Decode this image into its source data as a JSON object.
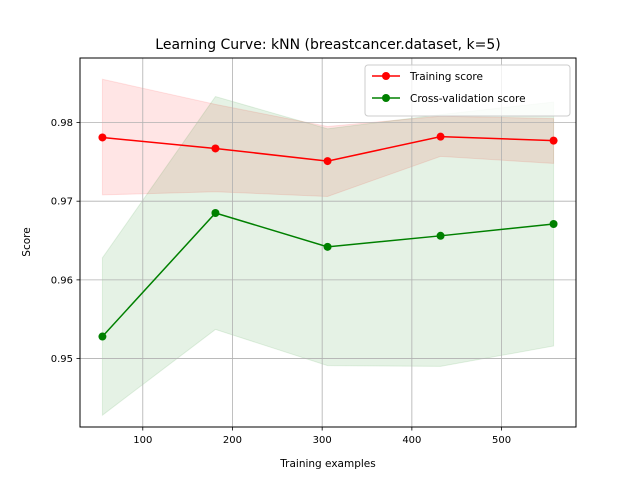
{
  "chart_data": {
    "type": "line",
    "title": "Learning Curve: kNN (breastcancer.dataset, k=5)",
    "xlabel": "Training examples",
    "ylabel": "Score",
    "xlim": [
      30,
      583
    ],
    "ylim": [
      0.9413,
      0.9882
    ],
    "xticks": [
      100,
      200,
      300,
      400,
      500
    ],
    "yticks": [
      0.95,
      0.96,
      0.97,
      0.98
    ],
    "grid": true,
    "legend_position": "top-right",
    "x": [
      55,
      181,
      306,
      432,
      558
    ],
    "series": [
      {
        "name": "Training score",
        "color": "#ff0000",
        "fill_color": "#ff0000",
        "values": [
          0.9781,
          0.9767,
          0.9751,
          0.9782,
          0.9777
        ],
        "upper": [
          0.9855,
          0.9823,
          0.9795,
          0.9808,
          0.9805
        ],
        "lower": [
          0.9708,
          0.9712,
          0.9706,
          0.9757,
          0.9748
        ]
      },
      {
        "name": "Cross-validation score",
        "color": "#008000",
        "fill_color": "#008000",
        "values": [
          0.9528,
          0.9685,
          0.9642,
          0.9656,
          0.9671
        ],
        "upper": [
          0.9628,
          0.9833,
          0.9792,
          0.981,
          0.9826
        ],
        "lower": [
          0.9428,
          0.9537,
          0.9491,
          0.949,
          0.9516
        ]
      }
    ]
  }
}
